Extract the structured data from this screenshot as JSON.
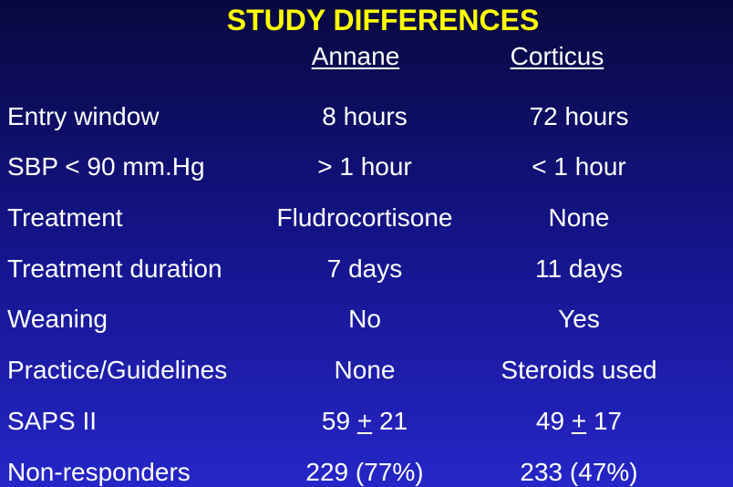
{
  "title": "STUDY DIFFERENCES",
  "columns": [
    "Annane",
    "Corticus"
  ],
  "rows": [
    [
      "Entry window",
      "8 hours",
      "72 hours"
    ],
    [
      "SBP < 90 mm.Hg",
      "> 1 hour",
      "< 1 hour"
    ],
    [
      "Treatment",
      "Fludrocortisone",
      "None"
    ],
    [
      "Treatment duration",
      "7 days",
      "11 days"
    ],
    [
      "Weaning",
      "No",
      "Yes"
    ],
    [
      "Practice/Guidelines",
      "None",
      "Steroids used"
    ],
    [
      "SAPS II",
      "59 + 21",
      "49 + 17"
    ],
    [
      "Non-responders",
      "229 (77%)",
      "233 (47%)"
    ]
  ]
}
